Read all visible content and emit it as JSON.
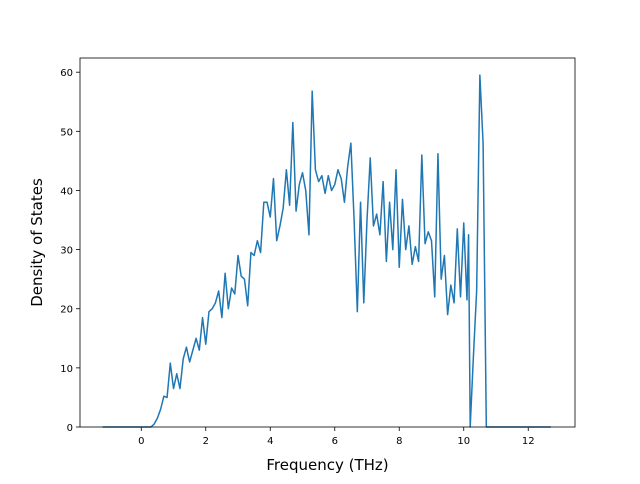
{
  "chart_data": {
    "type": "line",
    "xlabel": "Frequency (THz)",
    "ylabel": "Density of States",
    "xlim": [
      -1.9,
      13.45
    ],
    "ylim": [
      0,
      62.4
    ],
    "xticks": [
      0,
      2,
      4,
      6,
      8,
      10,
      12
    ],
    "yticks": [
      0,
      10,
      20,
      30,
      40,
      50,
      60
    ],
    "x": [
      -1.2,
      0.3,
      0.4,
      0.5,
      0.6,
      0.7,
      0.8,
      0.9,
      1.0,
      1.1,
      1.2,
      1.3,
      1.4,
      1.5,
      1.6,
      1.7,
      1.8,
      1.9,
      2.0,
      2.1,
      2.2,
      2.3,
      2.4,
      2.5,
      2.6,
      2.7,
      2.8,
      2.9,
      3.0,
      3.1,
      3.2,
      3.3,
      3.4,
      3.5,
      3.6,
      3.7,
      3.8,
      3.9,
      4.0,
      4.1,
      4.2,
      4.3,
      4.4,
      4.5,
      4.6,
      4.7,
      4.8,
      4.9,
      5.0,
      5.1,
      5.2,
      5.3,
      5.4,
      5.5,
      5.6,
      5.7,
      5.8,
      5.9,
      6.0,
      6.1,
      6.2,
      6.3,
      6.4,
      6.5,
      6.6,
      6.7,
      6.8,
      6.9,
      7.0,
      7.1,
      7.2,
      7.3,
      7.4,
      7.5,
      7.6,
      7.7,
      7.8,
      7.9,
      8.0,
      8.1,
      8.2,
      8.3,
      8.4,
      8.5,
      8.6,
      8.7,
      8.8,
      8.9,
      9.0,
      9.1,
      9.2,
      9.3,
      9.4,
      9.5,
      9.6,
      9.7,
      9.8,
      9.9,
      10.0,
      10.1,
      10.15,
      10.2,
      10.3,
      10.4,
      10.5,
      10.6,
      10.7,
      12.7
    ],
    "series": [
      {
        "color": "#1f77b4",
        "values": [
          0,
          0,
          0.5,
          1.5,
          3,
          5.2,
          5,
          10.8,
          6.5,
          9,
          6.5,
          11.5,
          13.5,
          11,
          13,
          15,
          13,
          18.5,
          14,
          19.5,
          20,
          21,
          23,
          18.5,
          26,
          20,
          23.5,
          22.5,
          29,
          25.5,
          25,
          20.5,
          29.5,
          29,
          31.5,
          29.5,
          38,
          38,
          35.5,
          42,
          31.5,
          34,
          37,
          43.5,
          37.5,
          51.5,
          36.5,
          41,
          43,
          40,
          32.5,
          56.8,
          43.5,
          41.5,
          42.5,
          39.5,
          42.5,
          40,
          41,
          43.5,
          42,
          38,
          44,
          48,
          35,
          19.5,
          38,
          21,
          35,
          45.5,
          34,
          36,
          32.5,
          41.5,
          28,
          38,
          30,
          43.5,
          27,
          38.5,
          30,
          34,
          27.5,
          30.5,
          28,
          46,
          31,
          33,
          31.5,
          22,
          46.2,
          25,
          29,
          19,
          24,
          21,
          33.5,
          22,
          34.5,
          21.5,
          32.5,
          0,
          12,
          23,
          59.5,
          48,
          0,
          0
        ]
      }
    ]
  }
}
